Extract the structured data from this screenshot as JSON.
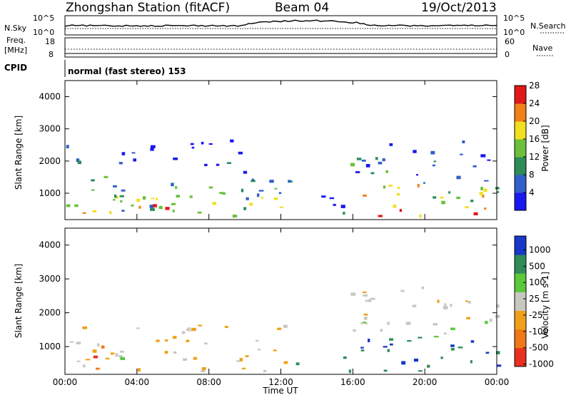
{
  "header": {
    "station_title": "Zhongshan Station (fitACF)",
    "beam": "Beam 04",
    "date": "19/Oct/2013"
  },
  "strips": {
    "nsky": {
      "left_label": "N.Sky",
      "right_label": "N.Search",
      "tick_hi": "10^5",
      "tick_lo": "10^0"
    },
    "freq": {
      "left_label": "Freq.",
      "unit": "MHz",
      "right_label": "Nave",
      "left_hi": "18",
      "left_lo": "8",
      "right_hi": "60",
      "right_lo": "0"
    },
    "cpid": {
      "label": "CPID",
      "text": "normal (fast stereo) 153"
    }
  },
  "chart_data": [
    {
      "type": "heatmap",
      "name": "power",
      "ylabel": "Slant Range [km]",
      "xlabel": "Time UT",
      "ylim": [
        180,
        4500
      ],
      "xlim": [
        0,
        24
      ],
      "y_ticks": [
        "1000",
        "2000",
        "3000",
        "4000"
      ],
      "x_ticks": [
        "00:00",
        "04:00",
        "08:00",
        "12:00",
        "16:00",
        "20:00",
        "00:00"
      ],
      "colorbar": {
        "label": "Power [dB]",
        "ticks": [
          "4",
          "8",
          "12",
          "16",
          "20",
          "24",
          "28"
        ],
        "colors": [
          "#1818f0",
          "#3060c8",
          "#2e8c58",
          "#6cc03c",
          "#f0e020",
          "#f08018",
          "#e01818"
        ]
      },
      "regions": [
        {
          "t0": 0.0,
          "t1": 12.5,
          "r0": 300,
          "r1": 1700,
          "level": 0.55
        },
        {
          "t0": 0.3,
          "t1": 6.0,
          "r0": 320,
          "r1": 900,
          "level": 0.9
        },
        {
          "t0": 0.0,
          "t1": 10.0,
          "r0": 1900,
          "r1": 2700,
          "level": 0.2
        },
        {
          "t0": 13.0,
          "t1": 16.0,
          "r0": 350,
          "r1": 1000,
          "level": 0.3
        },
        {
          "t0": 15.5,
          "t1": 24.0,
          "r0": 300,
          "r1": 1300,
          "level": 0.8
        },
        {
          "t0": 15.5,
          "t1": 24.0,
          "r0": 1300,
          "r1": 2700,
          "level": 0.4
        }
      ]
    },
    {
      "type": "heatmap",
      "name": "velocity",
      "ylabel": "Slant Range [km]",
      "xlabel": "Time UT",
      "ylim": [
        180,
        4500
      ],
      "xlim": [
        0,
        24
      ],
      "y_ticks": [
        "1000",
        "2000",
        "3000",
        "4000"
      ],
      "x_ticks": [
        "00:00",
        "04:00",
        "08:00",
        "12:00",
        "16:00",
        "20:00",
        "00:00"
      ],
      "colorbar": {
        "label": "Velocity [m s-1]",
        "ticks": [
          "1000",
          "500",
          "100",
          "25",
          "-25",
          "-100",
          "-500",
          "-1000"
        ],
        "colors": [
          "#1838c8",
          "#2f8c58",
          "#5cc83c",
          "#c8c8c0",
          "#f0a018",
          "#f07818",
          "#e83020"
        ]
      },
      "regions": [
        {
          "t0": 0.0,
          "t1": 12.5,
          "r0": 300,
          "r1": 1700,
          "level": -0.2
        },
        {
          "t0": 0.2,
          "t1": 3.5,
          "r0": 350,
          "r1": 1100,
          "level": -0.7
        },
        {
          "t0": 3.0,
          "t1": 5.0,
          "r0": 400,
          "r1": 800,
          "level": 0.5
        },
        {
          "t0": 12.0,
          "t1": 16.0,
          "r0": 300,
          "r1": 900,
          "level": 0.7
        },
        {
          "t0": 15.5,
          "t1": 24.0,
          "r0": 300,
          "r1": 1300,
          "level": 0.7
        },
        {
          "t0": 15.5,
          "t1": 24.0,
          "r0": 1300,
          "r1": 2800,
          "level": 0.0
        }
      ]
    }
  ]
}
